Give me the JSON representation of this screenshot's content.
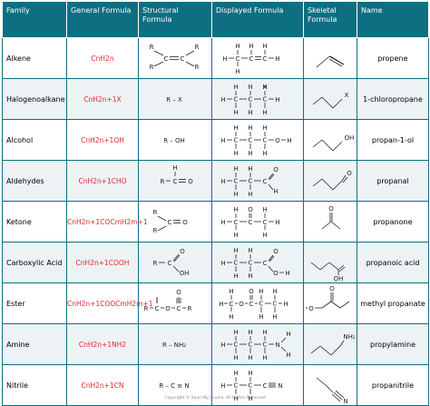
{
  "headers": {
    "family": "Family",
    "general": "General Formula",
    "structural": "Structural Formula",
    "displayed": "Displayed Formula",
    "skeletal": "Skeletal Formula",
    "name": "Name"
  },
  "rows": [
    {
      "family": "Alkene",
      "general": "CnH2n",
      "structural": "R2C=CR2",
      "name": "propene",
      "alt": false
    },
    {
      "family": "Halogenoalkane",
      "general": "CnH2n+1X",
      "structural": "R – X",
      "name": "1-chloropropane",
      "alt": true
    },
    {
      "family": "Alcohol",
      "general": "CnH2n+1OH",
      "structural": "R – OH",
      "name": "propan-1-ol",
      "alt": false
    },
    {
      "family": "Aldehydes",
      "general": "CnH2n+1CHO",
      "structural": "R – C = O",
      "name": "propanal",
      "alt": true
    },
    {
      "family": "Ketone",
      "general": "CnH2n+1COCmH2m+1",
      "structural": "R2C = O",
      "name": "propanone",
      "alt": false
    },
    {
      "family": "Carboxylic Acid",
      "general": "CnH2n+1COOH",
      "structural": "R – C(=O)OH",
      "name": "propanoic acid",
      "alt": true
    },
    {
      "family": "Ester",
      "general": "CnH2n+1COOCmH2m+1",
      "structural": "R – C – O – C – R",
      "name": "methyl propanate",
      "alt": false
    },
    {
      "family": "Amine",
      "general": "CnH2n+1NH2",
      "structural": "R – NH2",
      "name": "propylamine",
      "alt": true
    },
    {
      "family": "Nitrile",
      "general": "CnH2n+1CN",
      "structural": "R – C ≡ N",
      "name": "propanitrile",
      "alt": false
    }
  ],
  "footer": "Copyright © Save My Exams. All Rights Reserved",
  "colors": {
    "header_bg": "#0e6f82",
    "formula": "#e3262d",
    "alt_row": "#edf3f5"
  }
}
